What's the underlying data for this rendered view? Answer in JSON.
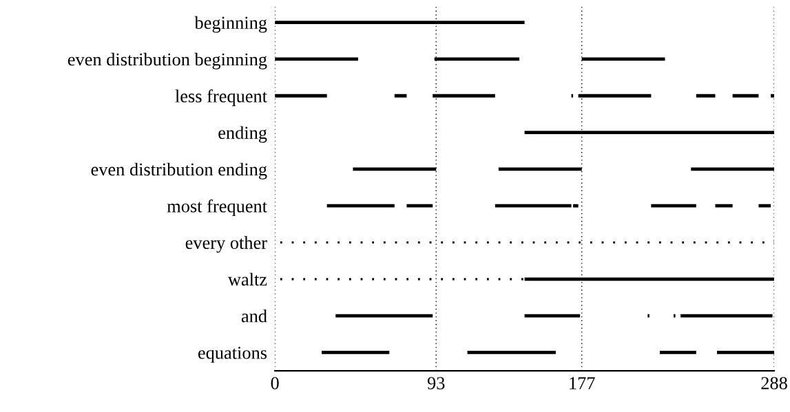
{
  "chart_data": {
    "type": "bar",
    "orientation": "horizontal",
    "categories": [
      "beginning",
      "even distribution beginning",
      "less frequent",
      "ending",
      "even distribution ending",
      "most frequent",
      "every other",
      "waltz",
      "and",
      "equations"
    ],
    "series": [
      {
        "color": "#000000",
        "base": [
          0,
          0,
          0,
          144,
          45,
          30,
          null,
          144,
          35,
          27
        ],
        "values": [
          144,
          48,
          30,
          144,
          48,
          39,
          null,
          144,
          56,
          39
        ]
      },
      {
        "color": "#000000",
        "base": [
          null,
          92,
          69,
          null,
          129,
          76,
          null,
          null,
          144,
          111
        ],
        "values": [
          null,
          49,
          7,
          null,
          48,
          15,
          null,
          null,
          32,
          51
        ]
      },
      {
        "color": "#000000",
        "base": [
          null,
          177,
          91,
          null,
          240,
          127,
          null,
          null,
          215,
          222
        ],
        "values": [
          null,
          48,
          36,
          null,
          48,
          44,
          null,
          null,
          1,
          21
        ]
      },
      {
        "color": "#000000",
        "base": [
          null,
          null,
          171,
          null,
          null,
          172,
          null,
          null,
          230,
          255
        ],
        "values": [
          null,
          null,
          1,
          null,
          null,
          3,
          null,
          null,
          1,
          33
        ]
      },
      {
        "color": "#000000",
        "base": [
          null,
          null,
          175,
          null,
          null,
          217,
          null,
          null,
          234,
          null
        ],
        "values": [
          null,
          null,
          42,
          null,
          null,
          26,
          null,
          null,
          53,
          null
        ]
      },
      {
        "color": "#000000",
        "base": [
          null,
          null,
          243,
          null,
          null,
          254,
          null,
          null,
          null,
          null
        ],
        "values": [
          null,
          null,
          11,
          null,
          null,
          10,
          null,
          null,
          null,
          null
        ]
      },
      {
        "color": "#000000",
        "base": [
          null,
          null,
          264,
          null,
          null,
          279,
          null,
          null,
          null,
          null
        ],
        "values": [
          null,
          null,
          15,
          null,
          null,
          7,
          null,
          null,
          null,
          null
        ]
      },
      {
        "color": "#000000",
        "base": [
          null,
          null,
          286,
          null,
          null,
          null,
          null,
          null,
          null,
          null
        ],
        "values": [
          null,
          null,
          2,
          null,
          null,
          null,
          null,
          null,
          null,
          null
        ]
      },
      {
        "color": "#000000",
        "line_style": "dotted",
        "base": [
          null,
          null,
          null,
          null,
          null,
          null,
          0,
          0,
          null,
          null
        ],
        "values": [
          null,
          null,
          null,
          null,
          null,
          null,
          288,
          144,
          null,
          null
        ]
      }
    ],
    "xlim": [
      0,
      288
    ],
    "xticks": [
      0,
      93,
      177,
      288
    ],
    "grid": "x"
  }
}
